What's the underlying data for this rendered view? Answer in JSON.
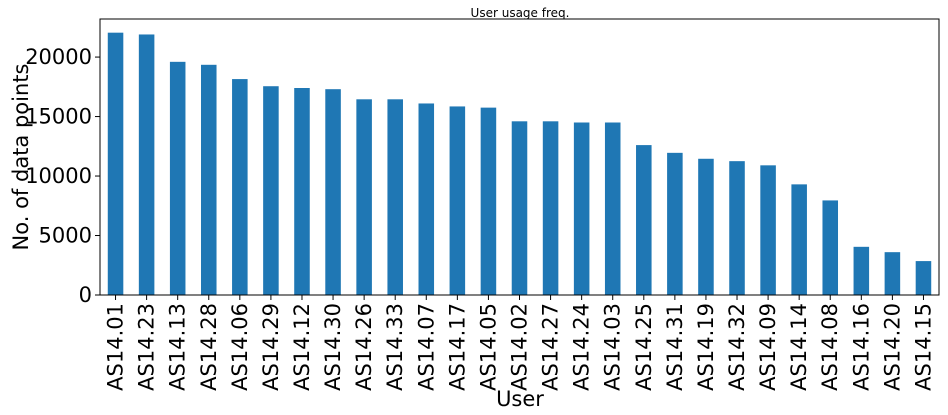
{
  "chart_data": {
    "type": "bar",
    "title": "User usage freq.",
    "xlabel": "User",
    "ylabel": "No. of data points",
    "ylim": [
      0,
      23200
    ],
    "yticks": [
      0,
      5000,
      10000,
      15000,
      20000
    ],
    "grid": false,
    "bar_color": "#1f77b4",
    "categories": [
      "AS14.01",
      "AS14.23",
      "AS14.13",
      "AS14.28",
      "AS14.06",
      "AS14.29",
      "AS14.12",
      "AS14.30",
      "AS14.26",
      "AS14.33",
      "AS14.07",
      "AS14.17",
      "AS14.05",
      "AS14.02",
      "AS14.27",
      "AS14.24",
      "AS14.03",
      "AS14.25",
      "AS14.31",
      "AS14.19",
      "AS14.32",
      "AS14.09",
      "AS14.14",
      "AS14.08",
      "AS14.16",
      "AS14.20",
      "AS14.15"
    ],
    "values": [
      22050,
      21900,
      19600,
      19350,
      18150,
      17550,
      17400,
      17300,
      16450,
      16450,
      16100,
      15850,
      15750,
      14600,
      14600,
      14500,
      14500,
      12600,
      11950,
      11450,
      11250,
      10900,
      9300,
      7950,
      4050,
      3600,
      2850
    ]
  }
}
